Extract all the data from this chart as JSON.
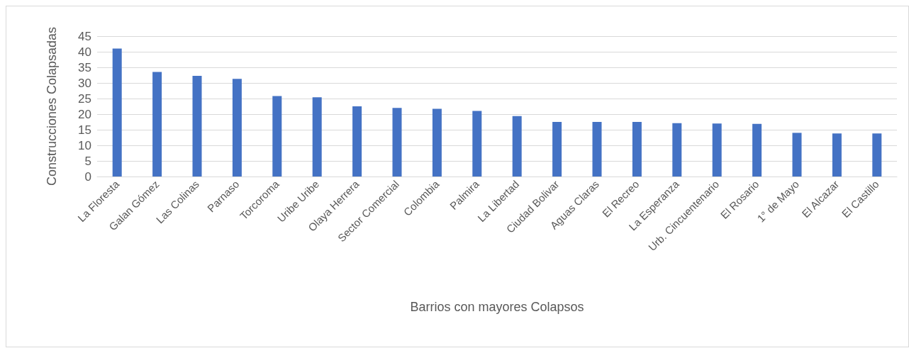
{
  "chart_data": {
    "type": "bar",
    "xlabel": "Barrios con mayores Colapsos",
    "ylabel": "Construcciones Colapsadas",
    "categories": [
      "La Floresta",
      "Galan Gómez",
      "Las Colinas",
      "Parnaso",
      "Torcoroma",
      "Uribe Uribe",
      "Olaya Herrera",
      "Sector Comercial",
      "Colombia",
      "Palmira",
      "La Libertad",
      "Ciudad Bolivar",
      "Aguas Claras",
      "El Recreo",
      "La Esperanza",
      "Urb. Cincuentenario",
      "El Rosario",
      "1° de Mayo",
      "El Alcazar",
      "El Castillo"
    ],
    "values": [
      41,
      33.5,
      32.3,
      31.3,
      25.8,
      25.4,
      22.5,
      22,
      21.7,
      21,
      19.4,
      17.5,
      17.5,
      17.5,
      17.1,
      17,
      16.9,
      14,
      13.8,
      13.8
    ],
    "color": "#4472c4",
    "ylim": [
      0,
      45
    ],
    "yticks": [
      0,
      5,
      10,
      15,
      20,
      25,
      30,
      35,
      40,
      45
    ],
    "grid": "y"
  }
}
